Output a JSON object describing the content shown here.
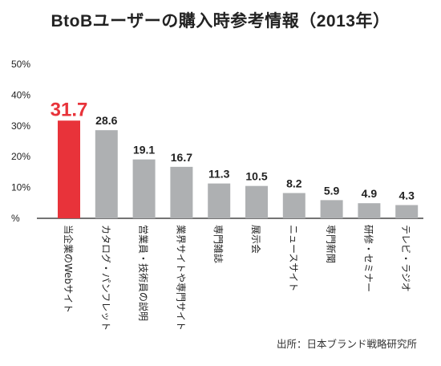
{
  "chart_data": {
    "type": "bar",
    "title": "BtoBユーザーの購入時参考情報（2013年）",
    "categories": [
      "当企業のWebサイト",
      "カタログ・パンフレット",
      "営業員・技術員の説明",
      "業界サイトや専門サイト",
      "専門雑誌",
      "展示会",
      "ニュースサイト",
      "専門新聞",
      "研修・セミナー",
      "テレビ・ラジオ"
    ],
    "values": [
      31.7,
      28.6,
      19.1,
      16.7,
      11.3,
      10.5,
      8.2,
      5.9,
      4.9,
      4.3
    ],
    "value_labels": [
      "31.7",
      "28.6",
      "19.1",
      "16.7",
      "11.3",
      "10.5",
      "8.2",
      "5.9",
      "4.9",
      "4.3"
    ],
    "y_tick_labels": [
      "%",
      "10%",
      "20%",
      "30%",
      "40%",
      "50%"
    ],
    "ylim": [
      0,
      50
    ],
    "highlight_index": 0,
    "grid": false,
    "colors": {
      "highlight": "#e8333a",
      "bar": "#aeb0b2",
      "axis": "#222222",
      "text": "#222222"
    }
  },
  "source": "出所：日本ブランド戦略研究所"
}
